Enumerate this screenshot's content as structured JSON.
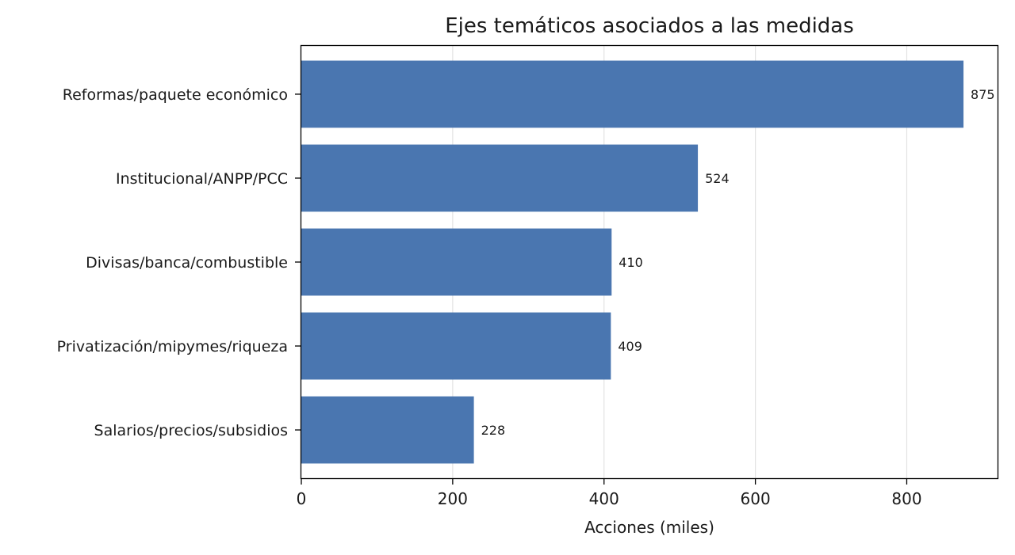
{
  "chart_data": {
    "type": "bar",
    "orientation": "horizontal",
    "title": "Ejes temáticos asociados a las medidas",
    "xlabel": "Acciones (miles)",
    "ylabel": "",
    "categories": [
      "Reformas/paquete económico",
      "Institucional/ANPP/PCC",
      "Divisas/banca/combustible",
      "Privatización/mipymes/riqueza",
      "Salarios/precios/subsidios"
    ],
    "values": [
      875,
      524,
      410,
      409,
      228
    ],
    "value_labels": [
      "875",
      "524",
      "410",
      "409",
      "228"
    ],
    "xlim": [
      0,
      920
    ],
    "xticks": [
      0,
      200,
      400,
      600,
      800
    ],
    "xtick_labels": [
      "0",
      "200",
      "400",
      "600",
      "800"
    ],
    "grid": "x",
    "legend": "none",
    "bar_color": "#4a76b0"
  }
}
